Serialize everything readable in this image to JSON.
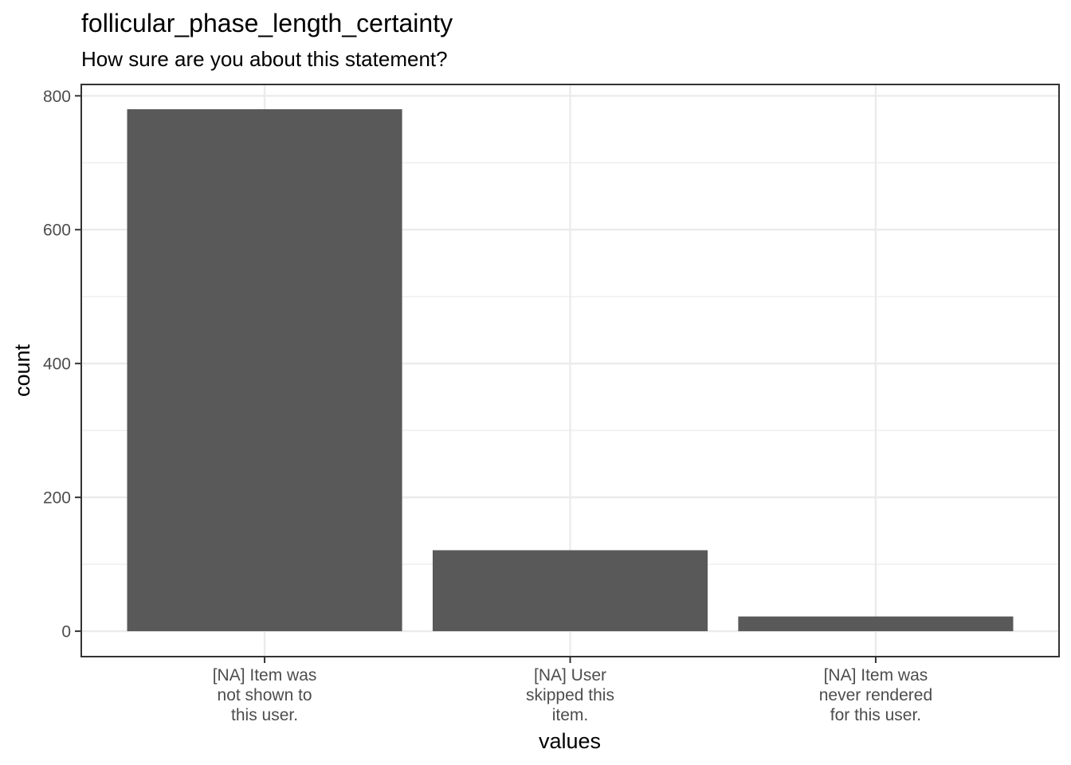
{
  "chart_data": {
    "type": "bar",
    "title": "follicular_phase_length_certainty",
    "subtitle": "How sure are you about this statement?",
    "xlabel": "values",
    "ylabel": "count",
    "categories": [
      "[NA] Item was\nnot shown to\nthis user.",
      "[NA] User\nskipped this\nitem.",
      "[NA] Item was\nnever rendered\nfor this user."
    ],
    "values": [
      780,
      121,
      22
    ],
    "ylim": [
      -38,
      817
    ],
    "yticks": [
      0,
      200,
      400,
      600,
      800
    ],
    "grid": true,
    "legend": "none",
    "bar_color": "#595959",
    "grid_color": "#ebebeb",
    "panel_border_color": "#333333"
  }
}
